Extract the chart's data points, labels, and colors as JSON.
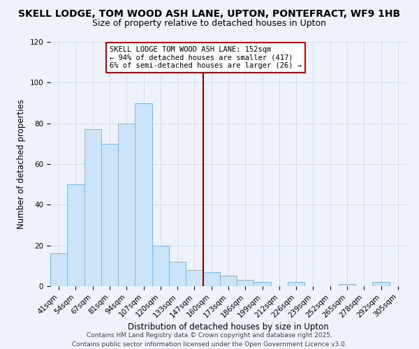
{
  "title": "SKELL LODGE, TOM WOOD ASH LANE, UPTON, PONTEFRACT, WF9 1HB",
  "subtitle": "Size of property relative to detached houses in Upton",
  "xlabel": "Distribution of detached houses by size in Upton",
  "ylabel": "Number of detached properties",
  "bar_color": "#cce4f7",
  "bar_edgecolor": "#7ab8e8",
  "background_color": "#eef2fb",
  "grid_color": "#d0d8e8",
  "categories": [
    "41sqm",
    "54sqm",
    "67sqm",
    "81sqm",
    "94sqm",
    "107sqm",
    "120sqm",
    "133sqm",
    "147sqm",
    "160sqm",
    "173sqm",
    "186sqm",
    "199sqm",
    "212sqm",
    "226sqm",
    "239sqm",
    "252sqm",
    "265sqm",
    "278sqm",
    "292sqm",
    "305sqm"
  ],
  "values": [
    16,
    50,
    77,
    70,
    80,
    90,
    20,
    12,
    8,
    7,
    5,
    3,
    2,
    0,
    2,
    0,
    0,
    1,
    0,
    2,
    0
  ],
  "ylim": [
    0,
    120
  ],
  "yticks": [
    0,
    20,
    40,
    60,
    80,
    100,
    120
  ],
  "vline_idx": 8.5,
  "vline_color": "#8b0000",
  "annotation_line1": "SKELL LODGE TOM WOOD ASH LANE: 152sqm",
  "annotation_line2": "← 94% of detached houses are smaller (417)",
  "annotation_line3": "6% of semi-detached houses are larger (26) →",
  "annotation_bbox_color": "white",
  "annotation_edgecolor": "#cc0000",
  "footer_line1": "Contains HM Land Registry data © Crown copyright and database right 2025.",
  "footer_line2": "Contains public sector information licensed under the Open Government Licence v3.0.",
  "title_fontsize": 10,
  "subtitle_fontsize": 9,
  "axis_label_fontsize": 8.5,
  "tick_fontsize": 7.5,
  "annotation_fontsize": 7.5,
  "footer_fontsize": 6.5
}
